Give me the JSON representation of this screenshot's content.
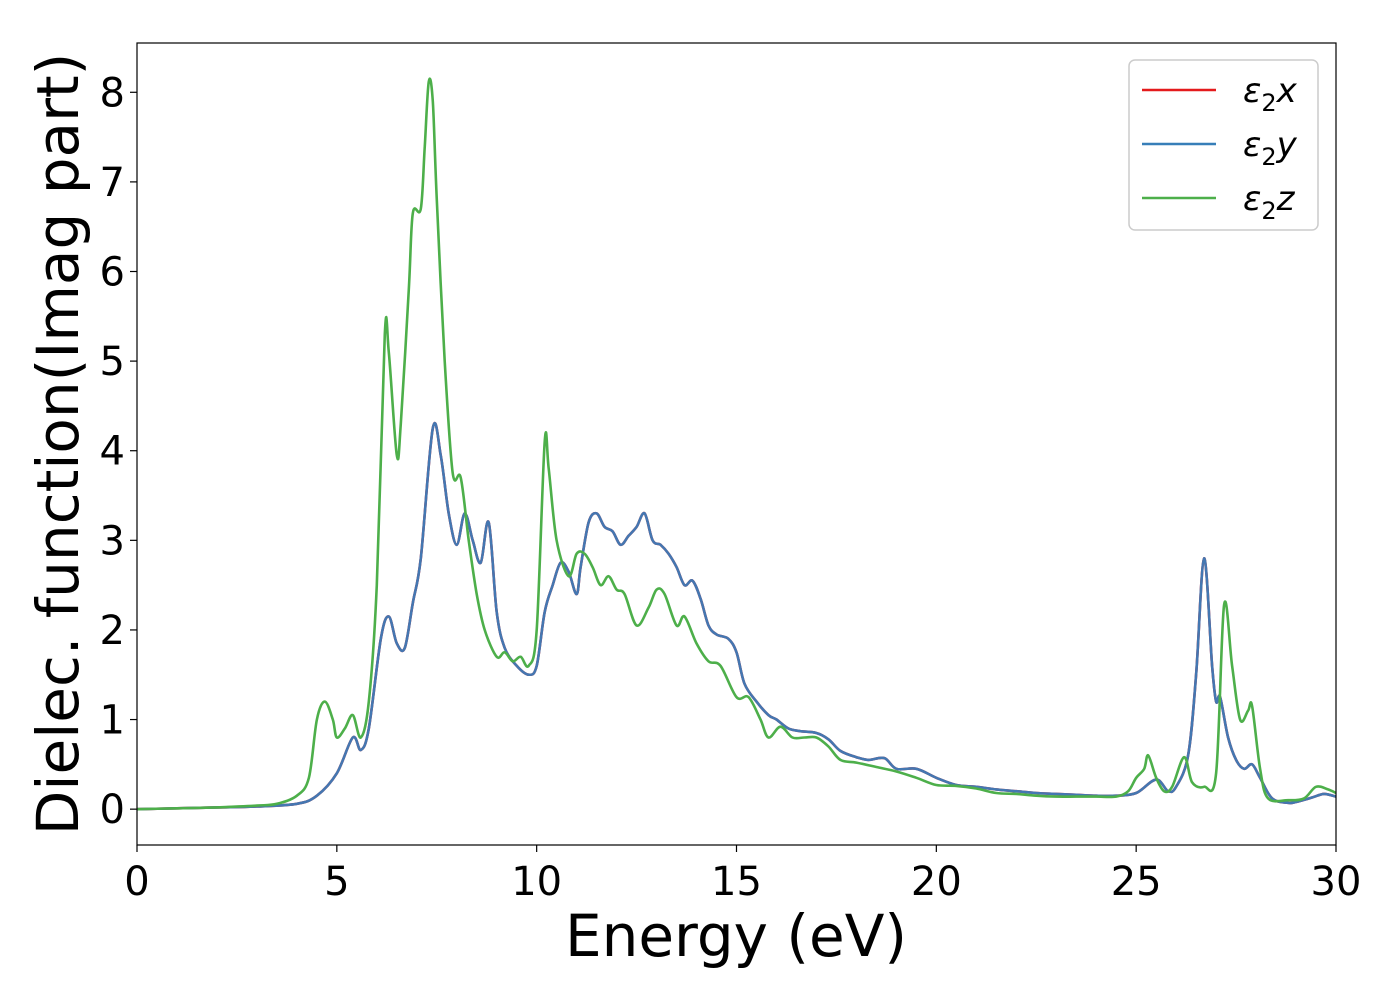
{
  "chart_data": {
    "type": "line",
    "title": "",
    "xlabel": "Energy (eV)",
    "ylabel": "Dielec. function(Imag part)",
    "xlim": [
      0,
      30
    ],
    "ylim": [
      -0.4,
      8.55
    ],
    "xticks": [
      0,
      5,
      10,
      15,
      20,
      25,
      30
    ],
    "yticks": [
      0,
      1,
      2,
      3,
      4,
      5,
      6,
      7,
      8
    ],
    "grid": false,
    "legend": {
      "position": "top-right",
      "entries": [
        {
          "base": "ε",
          "sub": "2",
          "var": "x",
          "color": "#e41a1c"
        },
        {
          "base": "ε",
          "sub": "2",
          "var": "y",
          "color": "#377eb8"
        },
        {
          "base": "ε",
          "sub": "2",
          "var": "z",
          "color": "#4daf4a"
        }
      ]
    },
    "series": [
      {
        "color": "#e41a1c",
        "points": [
          [
            0,
            0
          ],
          [
            1,
            0.01
          ],
          [
            2,
            0.02
          ],
          [
            3,
            0.03
          ],
          [
            4,
            0.06
          ],
          [
            4.5,
            0.15
          ],
          [
            5,
            0.4
          ],
          [
            5.4,
            0.8
          ],
          [
            5.6,
            0.66
          ],
          [
            5.8,
            0.9
          ],
          [
            6.1,
            1.9
          ],
          [
            6.3,
            2.15
          ],
          [
            6.5,
            1.85
          ],
          [
            6.7,
            1.8
          ],
          [
            6.9,
            2.3
          ],
          [
            7.1,
            2.8
          ],
          [
            7.4,
            4.25
          ],
          [
            7.6,
            3.95
          ],
          [
            7.8,
            3.3
          ],
          [
            8.0,
            2.95
          ],
          [
            8.2,
            3.3
          ],
          [
            8.4,
            3.0
          ],
          [
            8.6,
            2.75
          ],
          [
            8.8,
            3.2
          ],
          [
            9.0,
            2.2
          ],
          [
            9.2,
            1.8
          ],
          [
            9.5,
            1.6
          ],
          [
            9.8,
            1.5
          ],
          [
            10.0,
            1.6
          ],
          [
            10.2,
            2.2
          ],
          [
            10.4,
            2.5
          ],
          [
            10.6,
            2.75
          ],
          [
            10.8,
            2.65
          ],
          [
            11.0,
            2.4
          ],
          [
            11.1,
            2.7
          ],
          [
            11.3,
            3.2
          ],
          [
            11.5,
            3.3
          ],
          [
            11.7,
            3.15
          ],
          [
            11.9,
            3.1
          ],
          [
            12.1,
            2.95
          ],
          [
            12.3,
            3.05
          ],
          [
            12.5,
            3.15
          ],
          [
            12.7,
            3.3
          ],
          [
            12.9,
            3.0
          ],
          [
            13.1,
            2.95
          ],
          [
            13.3,
            2.85
          ],
          [
            13.5,
            2.7
          ],
          [
            13.7,
            2.5
          ],
          [
            13.9,
            2.55
          ],
          [
            14.1,
            2.35
          ],
          [
            14.3,
            2.05
          ],
          [
            14.5,
            1.95
          ],
          [
            14.8,
            1.9
          ],
          [
            15.0,
            1.75
          ],
          [
            15.2,
            1.4
          ],
          [
            15.5,
            1.2
          ],
          [
            15.8,
            1.05
          ],
          [
            16.0,
            1.0
          ],
          [
            16.3,
            0.9
          ],
          [
            16.6,
            0.87
          ],
          [
            17.0,
            0.85
          ],
          [
            17.3,
            0.78
          ],
          [
            17.6,
            0.65
          ],
          [
            18.0,
            0.58
          ],
          [
            18.3,
            0.55
          ],
          [
            18.7,
            0.57
          ],
          [
            19.0,
            0.45
          ],
          [
            19.5,
            0.45
          ],
          [
            20.0,
            0.35
          ],
          [
            20.5,
            0.27
          ],
          [
            21.0,
            0.25
          ],
          [
            21.5,
            0.22
          ],
          [
            22.0,
            0.2
          ],
          [
            22.5,
            0.18
          ],
          [
            23.0,
            0.17
          ],
          [
            23.5,
            0.16
          ],
          [
            24.0,
            0.15
          ],
          [
            24.5,
            0.15
          ],
          [
            25.0,
            0.18
          ],
          [
            25.5,
            0.33
          ],
          [
            25.8,
            0.2
          ],
          [
            26.0,
            0.25
          ],
          [
            26.3,
            0.6
          ],
          [
            26.5,
            1.5
          ],
          [
            26.7,
            2.8
          ],
          [
            26.9,
            1.6
          ],
          [
            27.0,
            1.2
          ],
          [
            27.1,
            1.25
          ],
          [
            27.3,
            0.8
          ],
          [
            27.5,
            0.55
          ],
          [
            27.7,
            0.45
          ],
          [
            27.9,
            0.5
          ],
          [
            28.1,
            0.35
          ],
          [
            28.4,
            0.12
          ],
          [
            28.8,
            0.07
          ],
          [
            29.0,
            0.08
          ],
          [
            29.4,
            0.13
          ],
          [
            29.7,
            0.17
          ],
          [
            30.0,
            0.14
          ]
        ]
      },
      {
        "color": "#4477b1",
        "points": [
          [
            0,
            0
          ],
          [
            1,
            0.01
          ],
          [
            2,
            0.02
          ],
          [
            3,
            0.03
          ],
          [
            4,
            0.06
          ],
          [
            4.5,
            0.15
          ],
          [
            5,
            0.4
          ],
          [
            5.4,
            0.8
          ],
          [
            5.6,
            0.66
          ],
          [
            5.8,
            0.9
          ],
          [
            6.1,
            1.9
          ],
          [
            6.3,
            2.15
          ],
          [
            6.5,
            1.85
          ],
          [
            6.7,
            1.8
          ],
          [
            6.9,
            2.3
          ],
          [
            7.1,
            2.8
          ],
          [
            7.4,
            4.25
          ],
          [
            7.6,
            3.95
          ],
          [
            7.8,
            3.3
          ],
          [
            8.0,
            2.95
          ],
          [
            8.2,
            3.3
          ],
          [
            8.4,
            3.0
          ],
          [
            8.6,
            2.75
          ],
          [
            8.8,
            3.2
          ],
          [
            9.0,
            2.2
          ],
          [
            9.2,
            1.8
          ],
          [
            9.5,
            1.6
          ],
          [
            9.8,
            1.5
          ],
          [
            10.0,
            1.6
          ],
          [
            10.2,
            2.2
          ],
          [
            10.4,
            2.5
          ],
          [
            10.6,
            2.75
          ],
          [
            10.8,
            2.65
          ],
          [
            11.0,
            2.4
          ],
          [
            11.1,
            2.7
          ],
          [
            11.3,
            3.2
          ],
          [
            11.5,
            3.3
          ],
          [
            11.7,
            3.15
          ],
          [
            11.9,
            3.1
          ],
          [
            12.1,
            2.95
          ],
          [
            12.3,
            3.05
          ],
          [
            12.5,
            3.15
          ],
          [
            12.7,
            3.3
          ],
          [
            12.9,
            3.0
          ],
          [
            13.1,
            2.95
          ],
          [
            13.3,
            2.85
          ],
          [
            13.5,
            2.7
          ],
          [
            13.7,
            2.5
          ],
          [
            13.9,
            2.55
          ],
          [
            14.1,
            2.35
          ],
          [
            14.3,
            2.05
          ],
          [
            14.5,
            1.95
          ],
          [
            14.8,
            1.9
          ],
          [
            15.0,
            1.75
          ],
          [
            15.2,
            1.4
          ],
          [
            15.5,
            1.2
          ],
          [
            15.8,
            1.05
          ],
          [
            16.0,
            1.0
          ],
          [
            16.3,
            0.9
          ],
          [
            16.6,
            0.87
          ],
          [
            17.0,
            0.85
          ],
          [
            17.3,
            0.78
          ],
          [
            17.6,
            0.65
          ],
          [
            18.0,
            0.58
          ],
          [
            18.3,
            0.55
          ],
          [
            18.7,
            0.57
          ],
          [
            19.0,
            0.45
          ],
          [
            19.5,
            0.45
          ],
          [
            20.0,
            0.35
          ],
          [
            20.5,
            0.27
          ],
          [
            21.0,
            0.25
          ],
          [
            21.5,
            0.22
          ],
          [
            22.0,
            0.2
          ],
          [
            22.5,
            0.18
          ],
          [
            23.0,
            0.17
          ],
          [
            23.5,
            0.16
          ],
          [
            24.0,
            0.15
          ],
          [
            24.5,
            0.15
          ],
          [
            25.0,
            0.18
          ],
          [
            25.5,
            0.33
          ],
          [
            25.8,
            0.2
          ],
          [
            26.0,
            0.25
          ],
          [
            26.3,
            0.6
          ],
          [
            26.5,
            1.5
          ],
          [
            26.7,
            2.8
          ],
          [
            26.9,
            1.6
          ],
          [
            27.0,
            1.2
          ],
          [
            27.1,
            1.25
          ],
          [
            27.3,
            0.8
          ],
          [
            27.5,
            0.55
          ],
          [
            27.7,
            0.45
          ],
          [
            27.9,
            0.5
          ],
          [
            28.1,
            0.35
          ],
          [
            28.4,
            0.12
          ],
          [
            28.8,
            0.07
          ],
          [
            29.0,
            0.08
          ],
          [
            29.4,
            0.13
          ],
          [
            29.7,
            0.17
          ],
          [
            30.0,
            0.14
          ]
        ]
      },
      {
        "color": "#4daf4a",
        "points": [
          [
            0,
            0
          ],
          [
            1,
            0.01
          ],
          [
            2,
            0.02
          ],
          [
            3,
            0.04
          ],
          [
            3.5,
            0.06
          ],
          [
            4.0,
            0.15
          ],
          [
            4.3,
            0.35
          ],
          [
            4.5,
            1.0
          ],
          [
            4.7,
            1.2
          ],
          [
            4.9,
            1.0
          ],
          [
            5.0,
            0.8
          ],
          [
            5.2,
            0.9
          ],
          [
            5.4,
            1.05
          ],
          [
            5.6,
            0.8
          ],
          [
            5.8,
            1.2
          ],
          [
            6.0,
            2.5
          ],
          [
            6.2,
            5.3
          ],
          [
            6.3,
            5.1
          ],
          [
            6.5,
            3.95
          ],
          [
            6.6,
            4.3
          ],
          [
            6.8,
            5.8
          ],
          [
            6.9,
            6.65
          ],
          [
            7.1,
            6.7
          ],
          [
            7.2,
            7.4
          ],
          [
            7.3,
            8.12
          ],
          [
            7.4,
            7.9
          ],
          [
            7.5,
            6.8
          ],
          [
            7.7,
            5.0
          ],
          [
            7.9,
            3.75
          ],
          [
            8.1,
            3.7
          ],
          [
            8.3,
            3.0
          ],
          [
            8.5,
            2.4
          ],
          [
            8.7,
            2.0
          ],
          [
            9.0,
            1.7
          ],
          [
            9.2,
            1.75
          ],
          [
            9.4,
            1.65
          ],
          [
            9.6,
            1.7
          ],
          [
            9.8,
            1.6
          ],
          [
            10.0,
            2.0
          ],
          [
            10.2,
            4.1
          ],
          [
            10.3,
            3.8
          ],
          [
            10.5,
            3.0
          ],
          [
            10.8,
            2.6
          ],
          [
            11.0,
            2.85
          ],
          [
            11.2,
            2.85
          ],
          [
            11.4,
            2.7
          ],
          [
            11.6,
            2.5
          ],
          [
            11.8,
            2.6
          ],
          [
            12.0,
            2.45
          ],
          [
            12.2,
            2.4
          ],
          [
            12.5,
            2.05
          ],
          [
            12.8,
            2.25
          ],
          [
            13.0,
            2.45
          ],
          [
            13.2,
            2.4
          ],
          [
            13.5,
            2.05
          ],
          [
            13.7,
            2.15
          ],
          [
            14.0,
            1.85
          ],
          [
            14.3,
            1.65
          ],
          [
            14.6,
            1.6
          ],
          [
            15.0,
            1.25
          ],
          [
            15.3,
            1.25
          ],
          [
            15.6,
            1.0
          ],
          [
            15.8,
            0.8
          ],
          [
            16.1,
            0.92
          ],
          [
            16.4,
            0.8
          ],
          [
            16.7,
            0.8
          ],
          [
            17.0,
            0.8
          ],
          [
            17.3,
            0.7
          ],
          [
            17.6,
            0.55
          ],
          [
            18.0,
            0.52
          ],
          [
            18.5,
            0.47
          ],
          [
            19.0,
            0.42
          ],
          [
            19.5,
            0.35
          ],
          [
            20.0,
            0.27
          ],
          [
            20.5,
            0.26
          ],
          [
            21.0,
            0.23
          ],
          [
            21.5,
            0.18
          ],
          [
            22.0,
            0.17
          ],
          [
            22.5,
            0.15
          ],
          [
            23.0,
            0.14
          ],
          [
            23.5,
            0.14
          ],
          [
            24.0,
            0.14
          ],
          [
            24.5,
            0.14
          ],
          [
            24.8,
            0.2
          ],
          [
            25.0,
            0.35
          ],
          [
            25.2,
            0.45
          ],
          [
            25.3,
            0.6
          ],
          [
            25.5,
            0.35
          ],
          [
            25.7,
            0.2
          ],
          [
            25.9,
            0.25
          ],
          [
            26.2,
            0.58
          ],
          [
            26.4,
            0.3
          ],
          [
            26.7,
            0.25
          ],
          [
            27.0,
            0.4
          ],
          [
            27.2,
            2.28
          ],
          [
            27.4,
            1.6
          ],
          [
            27.6,
            1.0
          ],
          [
            27.8,
            1.1
          ],
          [
            27.9,
            1.15
          ],
          [
            28.1,
            0.45
          ],
          [
            28.3,
            0.12
          ],
          [
            28.8,
            0.1
          ],
          [
            29.2,
            0.12
          ],
          [
            29.5,
            0.25
          ],
          [
            29.8,
            0.22
          ],
          [
            30.0,
            0.18
          ]
        ]
      }
    ]
  }
}
